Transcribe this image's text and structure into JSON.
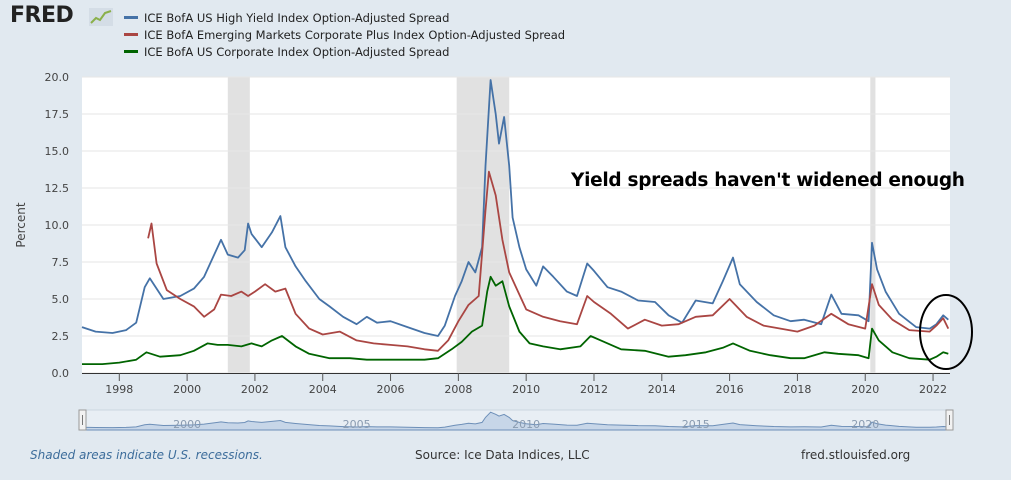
{
  "brand": {
    "logo_text": "FRED",
    "logo_icon": "line-chart-icon"
  },
  "legend": [
    {
      "label": "ICE BofA US High Yield Index Option-Adjusted Spread",
      "color": "#4572a7"
    },
    {
      "label": "ICE BofA Emerging Markets Corporate Plus Index Option-Adjusted Spread",
      "color": "#aa4643"
    },
    {
      "label": "ICE BofA US Corporate Index Option-Adjusted Spread",
      "color": "#006400"
    }
  ],
  "annotation": "Yield spreads haven't widened enough",
  "footer": {
    "recession_note": "Shaded areas indicate U.S. recessions.",
    "source": "Source: Ice Data Indices, LLC",
    "site": "fred.stlouisfed.org"
  },
  "navigator": {
    "labels": [
      "2000",
      "2005",
      "2010",
      "2015",
      "2020"
    ]
  },
  "chart_data": {
    "type": "line",
    "ylabel": "Percent",
    "xlabel": "",
    "xlim": [
      1996.9,
      2022.5
    ],
    "ylim": [
      0,
      20
    ],
    "x_ticks": [
      "1998",
      "2000",
      "2002",
      "2004",
      "2006",
      "2008",
      "2010",
      "2012",
      "2014",
      "2016",
      "2018",
      "2020",
      "2022"
    ],
    "y_ticks": [
      "0.0",
      "2.5",
      "5.0",
      "7.5",
      "10.0",
      "12.5",
      "15.0",
      "17.5",
      "20.0"
    ],
    "grid": true,
    "recessions": [
      [
        2001.2,
        2001.85
      ],
      [
        2007.95,
        2009.5
      ],
      [
        2020.15,
        2020.3
      ]
    ],
    "series": [
      {
        "name": "ICE BofA US High Yield Index Option-Adjusted Spread",
        "color": "#4572a7",
        "points": [
          [
            1996.9,
            3.1
          ],
          [
            1997.3,
            2.8
          ],
          [
            1997.8,
            2.7
          ],
          [
            1998.2,
            2.9
          ],
          [
            1998.5,
            3.4
          ],
          [
            1998.75,
            5.8
          ],
          [
            1998.9,
            6.4
          ],
          [
            1999.3,
            5.0
          ],
          [
            1999.8,
            5.2
          ],
          [
            2000.2,
            5.7
          ],
          [
            2000.5,
            6.5
          ],
          [
            2000.9,
            8.5
          ],
          [
            2001.0,
            9.0
          ],
          [
            2001.2,
            8.0
          ],
          [
            2001.5,
            7.8
          ],
          [
            2001.7,
            8.3
          ],
          [
            2001.8,
            10.1
          ],
          [
            2001.9,
            9.4
          ],
          [
            2002.2,
            8.5
          ],
          [
            2002.5,
            9.5
          ],
          [
            2002.75,
            10.6
          ],
          [
            2002.9,
            8.5
          ],
          [
            2003.2,
            7.2
          ],
          [
            2003.5,
            6.2
          ],
          [
            2003.9,
            5.0
          ],
          [
            2004.2,
            4.5
          ],
          [
            2004.6,
            3.8
          ],
          [
            2005.0,
            3.3
          ],
          [
            2005.3,
            3.8
          ],
          [
            2005.6,
            3.4
          ],
          [
            2006.0,
            3.5
          ],
          [
            2006.5,
            3.1
          ],
          [
            2007.0,
            2.7
          ],
          [
            2007.4,
            2.5
          ],
          [
            2007.6,
            3.2
          ],
          [
            2007.9,
            5.2
          ],
          [
            2008.1,
            6.2
          ],
          [
            2008.3,
            7.5
          ],
          [
            2008.5,
            6.8
          ],
          [
            2008.7,
            8.5
          ],
          [
            2008.8,
            14.0
          ],
          [
            2008.95,
            19.8
          ],
          [
            2009.1,
            17.5
          ],
          [
            2009.2,
            15.5
          ],
          [
            2009.35,
            17.3
          ],
          [
            2009.5,
            14.0
          ],
          [
            2009.6,
            10.5
          ],
          [
            2009.8,
            8.5
          ],
          [
            2010.0,
            7.0
          ],
          [
            2010.3,
            5.9
          ],
          [
            2010.5,
            7.2
          ],
          [
            2010.8,
            6.5
          ],
          [
            2011.2,
            5.5
          ],
          [
            2011.5,
            5.2
          ],
          [
            2011.8,
            7.4
          ],
          [
            2012.0,
            6.9
          ],
          [
            2012.4,
            5.8
          ],
          [
            2012.8,
            5.5
          ],
          [
            2013.3,
            4.9
          ],
          [
            2013.8,
            4.8
          ],
          [
            2014.2,
            3.9
          ],
          [
            2014.6,
            3.4
          ],
          [
            2015.0,
            4.9
          ],
          [
            2015.5,
            4.7
          ],
          [
            2015.8,
            6.2
          ],
          [
            2016.1,
            7.8
          ],
          [
            2016.3,
            6.0
          ],
          [
            2016.8,
            4.8
          ],
          [
            2017.3,
            3.9
          ],
          [
            2017.8,
            3.5
          ],
          [
            2018.2,
            3.6
          ],
          [
            2018.7,
            3.3
          ],
          [
            2019.0,
            5.3
          ],
          [
            2019.3,
            4.0
          ],
          [
            2019.8,
            3.9
          ],
          [
            2020.1,
            3.5
          ],
          [
            2020.2,
            8.8
          ],
          [
            2020.35,
            7.0
          ],
          [
            2020.6,
            5.5
          ],
          [
            2021.0,
            4.0
          ],
          [
            2021.5,
            3.1
          ],
          [
            2021.9,
            3.0
          ],
          [
            2022.1,
            3.3
          ],
          [
            2022.3,
            3.9
          ],
          [
            2022.45,
            3.6
          ]
        ]
      },
      {
        "name": "ICE BofA Emerging Markets Corporate Plus Index Option-Adjusted Spread",
        "color": "#aa4643",
        "points": [
          [
            1998.85,
            9.1
          ],
          [
            1998.95,
            10.1
          ],
          [
            1999.1,
            7.4
          ],
          [
            1999.4,
            5.6
          ],
          [
            1999.8,
            5.0
          ],
          [
            2000.2,
            4.5
          ],
          [
            2000.5,
            3.8
          ],
          [
            2000.8,
            4.3
          ],
          [
            2001.0,
            5.3
          ],
          [
            2001.3,
            5.2
          ],
          [
            2001.6,
            5.5
          ],
          [
            2001.8,
            5.2
          ],
          [
            2002.0,
            5.5
          ],
          [
            2002.3,
            6.0
          ],
          [
            2002.6,
            5.5
          ],
          [
            2002.9,
            5.7
          ],
          [
            2003.2,
            4.0
          ],
          [
            2003.6,
            3.0
          ],
          [
            2004.0,
            2.6
          ],
          [
            2004.5,
            2.8
          ],
          [
            2005.0,
            2.2
          ],
          [
            2005.5,
            2.0
          ],
          [
            2006.0,
            1.9
          ],
          [
            2006.5,
            1.8
          ],
          [
            2007.0,
            1.6
          ],
          [
            2007.4,
            1.5
          ],
          [
            2007.7,
            2.2
          ],
          [
            2008.0,
            3.5
          ],
          [
            2008.3,
            4.6
          ],
          [
            2008.6,
            5.2
          ],
          [
            2008.8,
            11.0
          ],
          [
            2008.9,
            13.6
          ],
          [
            2009.1,
            12.0
          ],
          [
            2009.3,
            9.0
          ],
          [
            2009.5,
            6.8
          ],
          [
            2009.8,
            5.3
          ],
          [
            2010.0,
            4.3
          ],
          [
            2010.5,
            3.8
          ],
          [
            2011.0,
            3.5
          ],
          [
            2011.5,
            3.3
          ],
          [
            2011.8,
            5.2
          ],
          [
            2012.0,
            4.8
          ],
          [
            2012.5,
            4.0
          ],
          [
            2013.0,
            3.0
          ],
          [
            2013.5,
            3.6
          ],
          [
            2014.0,
            3.2
          ],
          [
            2014.5,
            3.3
          ],
          [
            2015.0,
            3.8
          ],
          [
            2015.5,
            3.9
          ],
          [
            2016.0,
            5.0
          ],
          [
            2016.5,
            3.8
          ],
          [
            2017.0,
            3.2
          ],
          [
            2017.5,
            3.0
          ],
          [
            2018.0,
            2.8
          ],
          [
            2018.5,
            3.2
          ],
          [
            2019.0,
            4.0
          ],
          [
            2019.5,
            3.3
          ],
          [
            2020.0,
            3.0
          ],
          [
            2020.2,
            6.0
          ],
          [
            2020.4,
            4.6
          ],
          [
            2020.8,
            3.6
          ],
          [
            2021.3,
            2.9
          ],
          [
            2021.9,
            2.8
          ],
          [
            2022.1,
            3.2
          ],
          [
            2022.3,
            3.7
          ],
          [
            2022.45,
            3.0
          ]
        ]
      },
      {
        "name": "ICE BofA US Corporate Index Option-Adjusted Spread",
        "color": "#006400",
        "points": [
          [
            1996.9,
            0.6
          ],
          [
            1997.5,
            0.6
          ],
          [
            1998.0,
            0.7
          ],
          [
            1998.5,
            0.9
          ],
          [
            1998.8,
            1.4
          ],
          [
            1999.2,
            1.1
          ],
          [
            1999.8,
            1.2
          ],
          [
            2000.2,
            1.5
          ],
          [
            2000.6,
            2.0
          ],
          [
            2000.9,
            1.9
          ],
          [
            2001.2,
            1.9
          ],
          [
            2001.6,
            1.8
          ],
          [
            2001.9,
            2.0
          ],
          [
            2002.2,
            1.8
          ],
          [
            2002.5,
            2.2
          ],
          [
            2002.8,
            2.5
          ],
          [
            2003.2,
            1.8
          ],
          [
            2003.6,
            1.3
          ],
          [
            2004.2,
            1.0
          ],
          [
            2004.8,
            1.0
          ],
          [
            2005.3,
            0.9
          ],
          [
            2006.0,
            0.9
          ],
          [
            2006.5,
            0.9
          ],
          [
            2007.0,
            0.9
          ],
          [
            2007.4,
            1.0
          ],
          [
            2007.8,
            1.6
          ],
          [
            2008.1,
            2.1
          ],
          [
            2008.4,
            2.8
          ],
          [
            2008.7,
            3.2
          ],
          [
            2008.85,
            5.5
          ],
          [
            2008.95,
            6.5
          ],
          [
            2009.1,
            5.9
          ],
          [
            2009.3,
            6.2
          ],
          [
            2009.5,
            4.5
          ],
          [
            2009.8,
            2.8
          ],
          [
            2010.1,
            2.0
          ],
          [
            2010.5,
            1.8
          ],
          [
            2011.0,
            1.6
          ],
          [
            2011.6,
            1.8
          ],
          [
            2011.9,
            2.5
          ],
          [
            2012.2,
            2.2
          ],
          [
            2012.8,
            1.6
          ],
          [
            2013.5,
            1.5
          ],
          [
            2014.2,
            1.1
          ],
          [
            2014.7,
            1.2
          ],
          [
            2015.3,
            1.4
          ],
          [
            2015.8,
            1.7
          ],
          [
            2016.1,
            2.0
          ],
          [
            2016.6,
            1.5
          ],
          [
            2017.2,
            1.2
          ],
          [
            2017.8,
            1.0
          ],
          [
            2018.2,
            1.0
          ],
          [
            2018.8,
            1.4
          ],
          [
            2019.2,
            1.3
          ],
          [
            2019.8,
            1.2
          ],
          [
            2020.1,
            1.0
          ],
          [
            2020.2,
            3.0
          ],
          [
            2020.4,
            2.2
          ],
          [
            2020.8,
            1.4
          ],
          [
            2021.3,
            1.0
          ],
          [
            2021.9,
            0.9
          ],
          [
            2022.1,
            1.1
          ],
          [
            2022.3,
            1.4
          ],
          [
            2022.45,
            1.3
          ]
        ]
      }
    ]
  }
}
